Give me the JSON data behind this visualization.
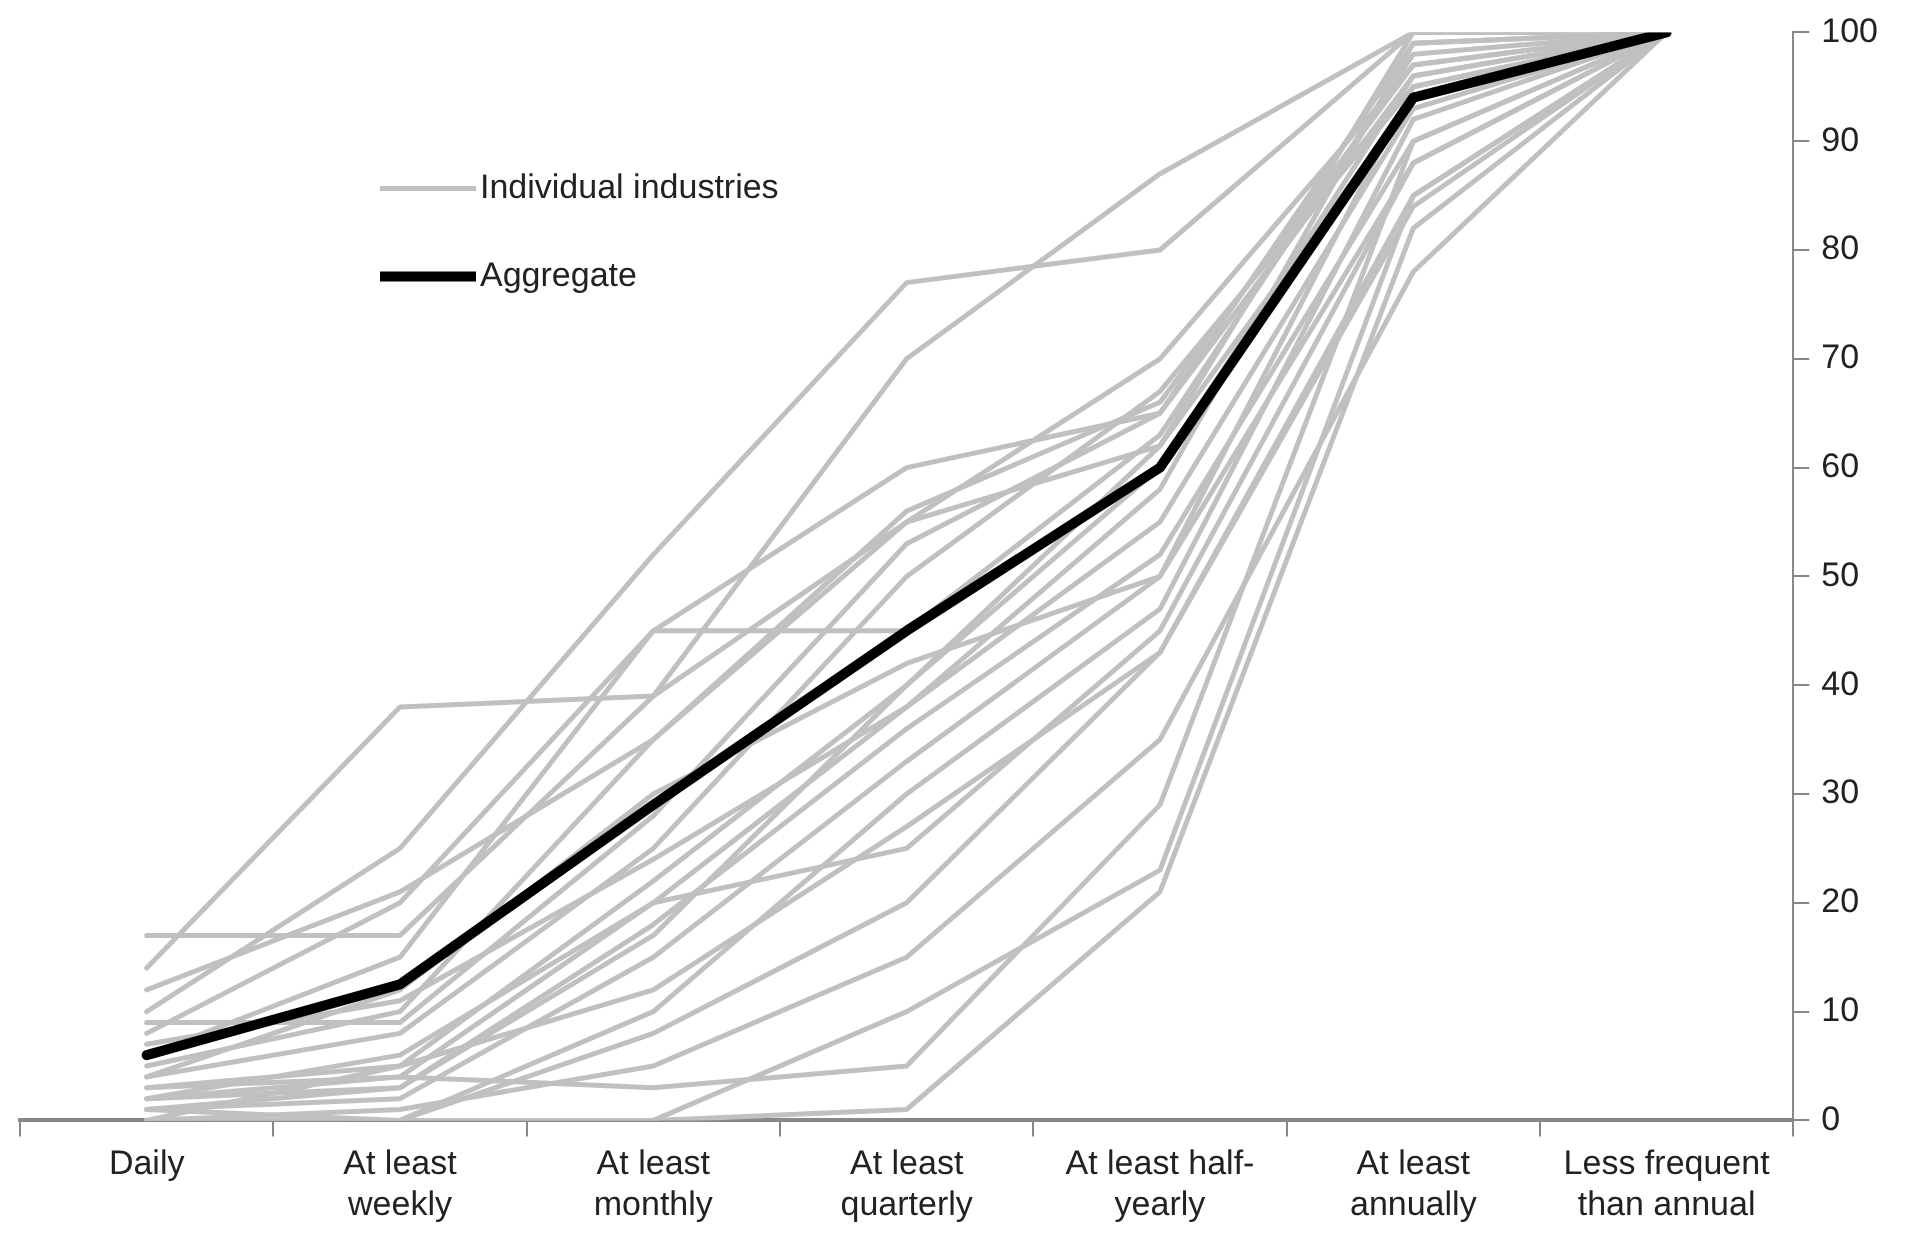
{
  "chart_data": {
    "type": "line",
    "categories": [
      "Daily",
      "At least weekly",
      "At least monthly",
      "At least quarterly",
      "At least half-yearly",
      "At least annually",
      "Less frequent than annual"
    ],
    "ylim": [
      0,
      100
    ],
    "yticks": [
      0,
      10,
      20,
      30,
      40,
      50,
      60,
      70,
      80,
      90,
      100
    ],
    "grid": false,
    "legend": "top left",
    "marker": "none",
    "line_style": "solid",
    "series": [
      {
        "name": "Individual industries",
        "color": "#c0c0c0",
        "values": [
          17,
          17,
          39,
          70,
          87,
          100,
          100
        ]
      },
      {
        "color": "#c0c0c0",
        "values": [
          14,
          38,
          39,
          55,
          62,
          100,
          100
        ]
      },
      {
        "color": "#c0c0c0",
        "values": [
          10,
          25,
          52,
          77,
          80,
          100,
          100
        ]
      },
      {
        "color": "#c0c0c0",
        "values": [
          8,
          20,
          45,
          60,
          65,
          99,
          100
        ]
      },
      {
        "color": "#c0c0c0",
        "values": [
          6,
          15,
          45,
          45,
          63,
          98,
          100
        ]
      },
      {
        "color": "#c0c0c0",
        "values": [
          5,
          10,
          35,
          55,
          70,
          97,
          100
        ]
      },
      {
        "color": "#c0c0c0",
        "values": [
          4,
          8,
          25,
          50,
          67,
          95,
          100
        ]
      },
      {
        "color": "#c0c0c0",
        "values": [
          3,
          5,
          22,
          40,
          60,
          96,
          100
        ]
      },
      {
        "color": "#c0c0c0",
        "values": [
          2,
          4,
          20,
          38,
          55,
          93,
          100
        ]
      },
      {
        "color": "#c0c0c0",
        "values": [
          2,
          3,
          18,
          36,
          52,
          90,
          100
        ]
      },
      {
        "color": "#c0c0c0",
        "values": [
          1,
          2,
          15,
          33,
          50,
          88,
          100
        ]
      },
      {
        "color": "#c0c0c0",
        "values": [
          1,
          0,
          10,
          30,
          47,
          92,
          100
        ]
      },
      {
        "color": "#c0c0c0",
        "values": [
          0,
          0,
          8,
          20,
          43,
          85,
          100
        ]
      },
      {
        "color": "#c0c0c0",
        "values": [
          0,
          1,
          5,
          15,
          35,
          78,
          100
        ]
      },
      {
        "color": "#c0c0c0",
        "values": [
          0,
          0,
          0,
          10,
          23,
          85,
          100
        ]
      },
      {
        "color": "#c0c0c0",
        "values": [
          0,
          0,
          0,
          1,
          21,
          82,
          100
        ]
      },
      {
        "color": "#c0c0c0",
        "values": [
          3,
          4,
          3,
          5,
          29,
          90,
          100
        ]
      },
      {
        "color": "#c0c0c0",
        "values": [
          2,
          6,
          20,
          25,
          45,
          88,
          100
        ]
      },
      {
        "color": "#c0c0c0",
        "values": [
          4,
          12,
          30,
          42,
          50,
          95,
          100
        ]
      },
      {
        "color": "#c0c0c0",
        "values": [
          9,
          9,
          28,
          53,
          65,
          96,
          100
        ]
      },
      {
        "color": "#c0c0c0",
        "values": [
          7,
          11,
          24,
          38,
          58,
          99,
          100
        ]
      },
      {
        "color": "#c0c0c0",
        "values": [
          12,
          21,
          35,
          56,
          66,
          97,
          100
        ]
      },
      {
        "color": "#c0c0c0",
        "values": [
          0,
          5,
          12,
          27,
          43,
          84,
          100
        ]
      },
      {
        "color": "#c0c0c0",
        "values": [
          1,
          3,
          17,
          40,
          62,
          94,
          100
        ]
      },
      {
        "name": "Aggregate",
        "color": "#000000",
        "values": [
          6,
          12.5,
          29,
          45,
          60,
          94,
          100
        ]
      }
    ]
  }
}
